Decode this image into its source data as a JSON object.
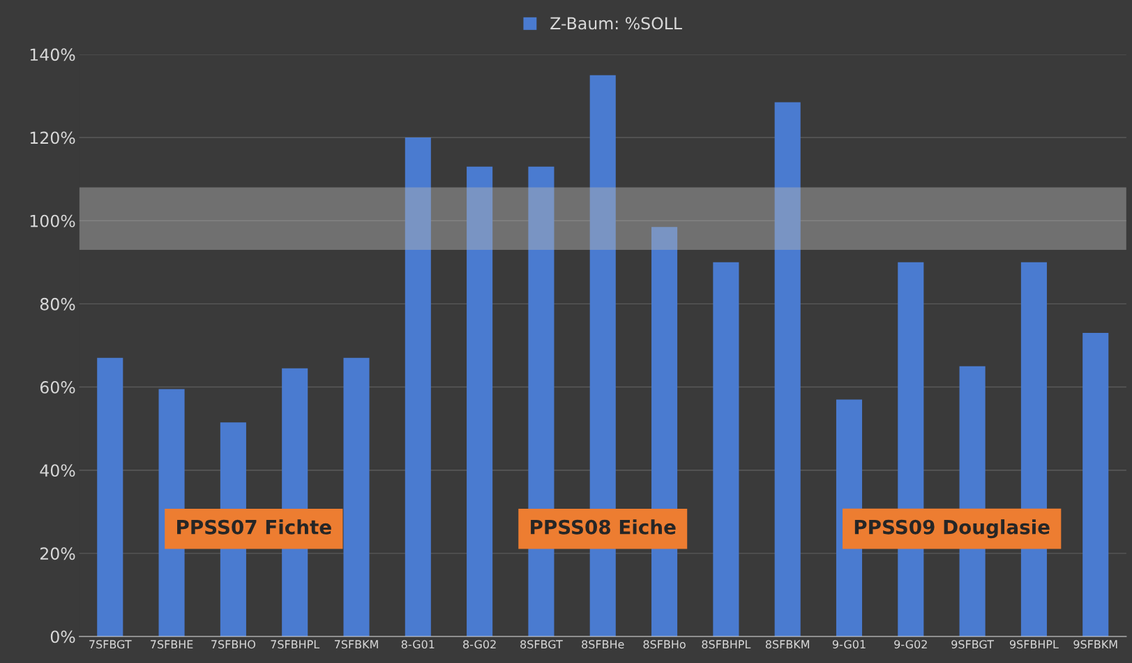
{
  "chart_data": {
    "type": "bar",
    "categories": [
      "7SFBGT",
      "7SFBHE",
      "7SFBHO",
      "7SFBHPL",
      "7SFBKM",
      "8-G01",
      "8-G02",
      "8SFBGT",
      "8SFBHe",
      "8SFBHo",
      "8SFBHPL",
      "8SFBKM",
      "9-G01",
      "9-G02",
      "9SFBGT",
      "9SFBHPL",
      "9SFBKM"
    ],
    "series": [
      {
        "name": "Z-Baum: %SOLL",
        "color": "#4a7bd0",
        "values": [
          67,
          59.5,
          51.5,
          64.5,
          67,
          120,
          113,
          113,
          135,
          98.5,
          90,
          128.5,
          57,
          90,
          65,
          90,
          73
        ]
      }
    ],
    "ylim": [
      0,
      140
    ],
    "yticks": [
      {
        "value": 0,
        "label": "0%"
      },
      {
        "value": 20,
        "label": "20%"
      },
      {
        "value": 40,
        "label": "40%"
      },
      {
        "value": 60,
        "label": "60%"
      },
      {
        "value": 80,
        "label": "80%"
      },
      {
        "value": 100,
        "label": "100%"
      },
      {
        "value": 120,
        "label": "120%"
      },
      {
        "value": 140,
        "label": "140%"
      }
    ],
    "bands": [
      {
        "axis": "y",
        "from": 93,
        "to": 108,
        "color": "#b4b4b4"
      }
    ],
    "annotations": [
      "PPSS07 Fichte",
      "PPSS08 Eiche",
      "PPSS09 Douglasie"
    ],
    "grid": "y",
    "legend": "top"
  }
}
